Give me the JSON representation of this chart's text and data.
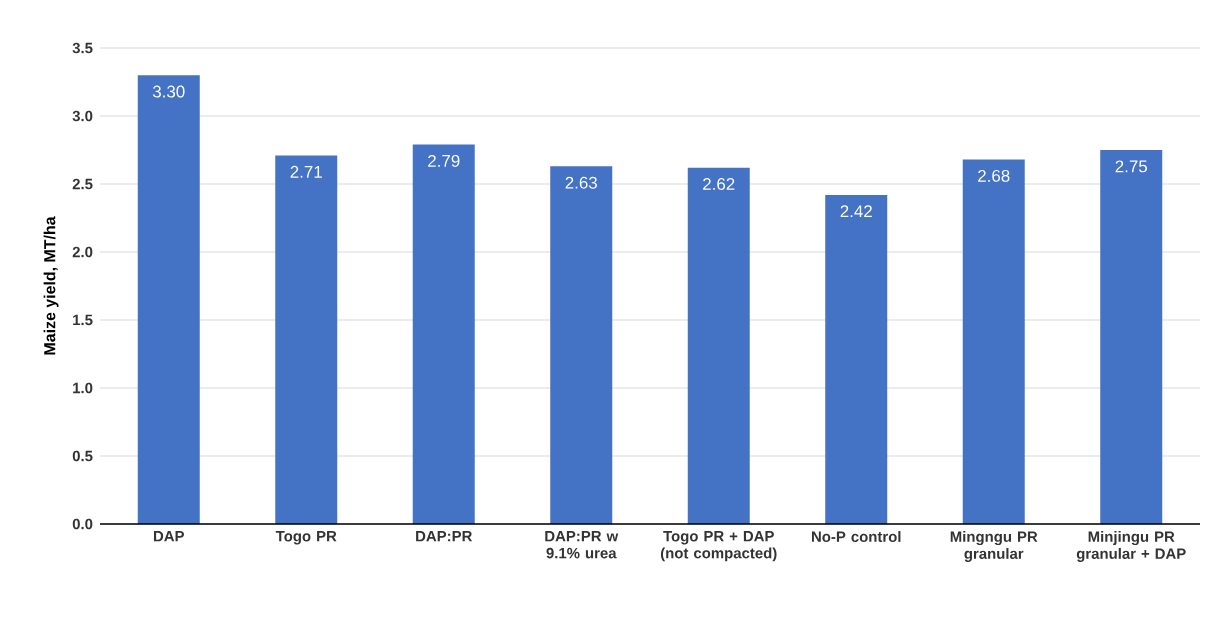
{
  "chart_data": {
    "type": "bar",
    "ylabel": "Maize yield, MT/ha",
    "categories": [
      "DAP",
      "Togo PR",
      "DAP:PR",
      "DAP:PR w 9.1% urea",
      "Togo PR + DAP (not compacted)",
      "No-P control",
      "Mingngu PR granular",
      "Minjingu PR granular + DAP"
    ],
    "values": [
      3.3,
      2.71,
      2.79,
      2.63,
      2.62,
      2.42,
      2.68,
      2.75
    ],
    "value_labels": [
      "3.30",
      "2.71",
      "2.79",
      "2.63",
      "2.62",
      "2.42",
      "2.68",
      "2.75"
    ],
    "color": "#4472c4",
    "ylim": [
      0,
      3.5
    ],
    "yticks": [
      {
        "value": 0,
        "label": "0.0"
      },
      {
        "value": 0.5,
        "label": "0.5"
      },
      {
        "value": 1,
        "label": "1.0"
      },
      {
        "value": 1.5,
        "label": "1.5"
      },
      {
        "value": 2,
        "label": "2.0"
      },
      {
        "value": 2.5,
        "label": "2.5"
      },
      {
        "value": 3,
        "label": "3.0"
      },
      {
        "value": 3.5,
        "label": "3.5"
      }
    ],
    "grid": "y"
  }
}
